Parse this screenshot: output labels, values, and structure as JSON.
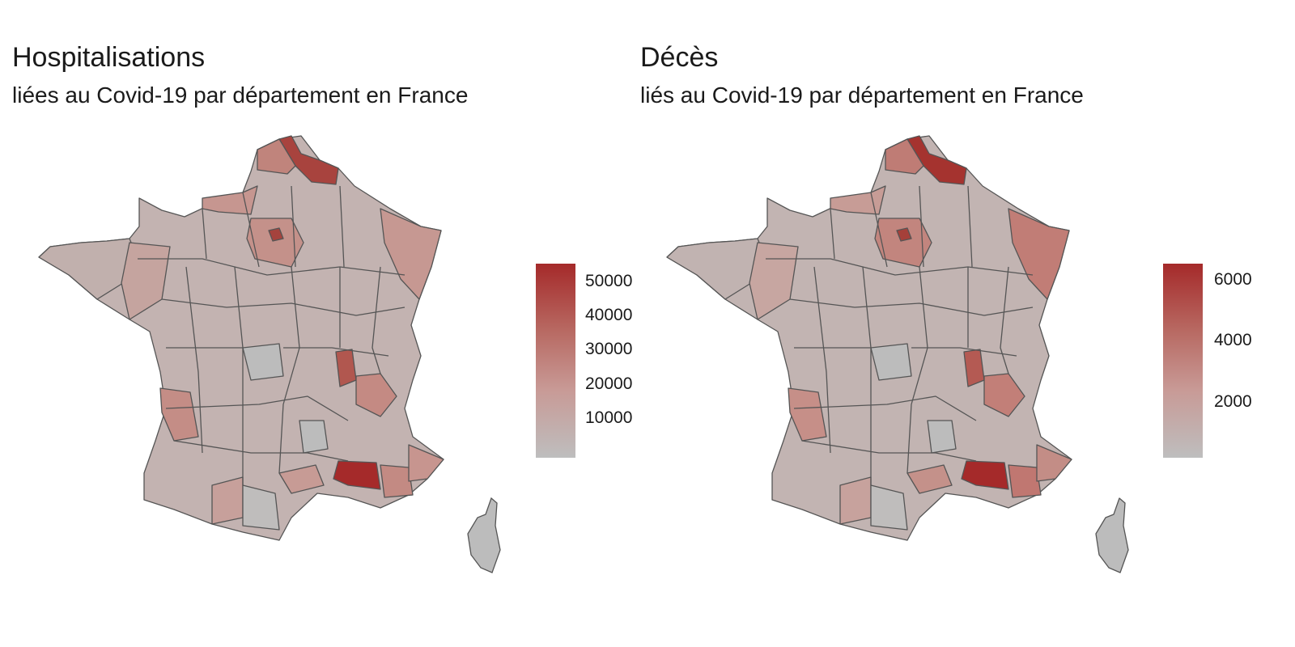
{
  "panels": [
    {
      "title": "Hospitalisations",
      "subtitle": "liées au Covid-19 par département en France",
      "legend": {
        "max": 56000,
        "min": 0,
        "ticks": [
          10000,
          20000,
          30000,
          40000,
          50000
        ],
        "labels": [
          "10000",
          "20000",
          "30000",
          "40000",
          "50000"
        ]
      }
    },
    {
      "title": "Décès",
      "subtitle": "liés au Covid-19 par département en France",
      "legend": {
        "max": 6600,
        "min": 0,
        "ticks": [
          2000,
          4000,
          6000
        ],
        "labels": [
          "2000",
          "4000",
          "6000"
        ]
      }
    }
  ],
  "colors": {
    "low": "#bebebe",
    "mid": "#c89a96",
    "high": "#a52a2a",
    "border": "#555555"
  },
  "map": {
    "region": "France (départements)",
    "high_regions": [
      "Nord",
      "Pas-de-Calais",
      "Bouches-du-Rhône",
      "Rhône",
      "Paris"
    ]
  }
}
